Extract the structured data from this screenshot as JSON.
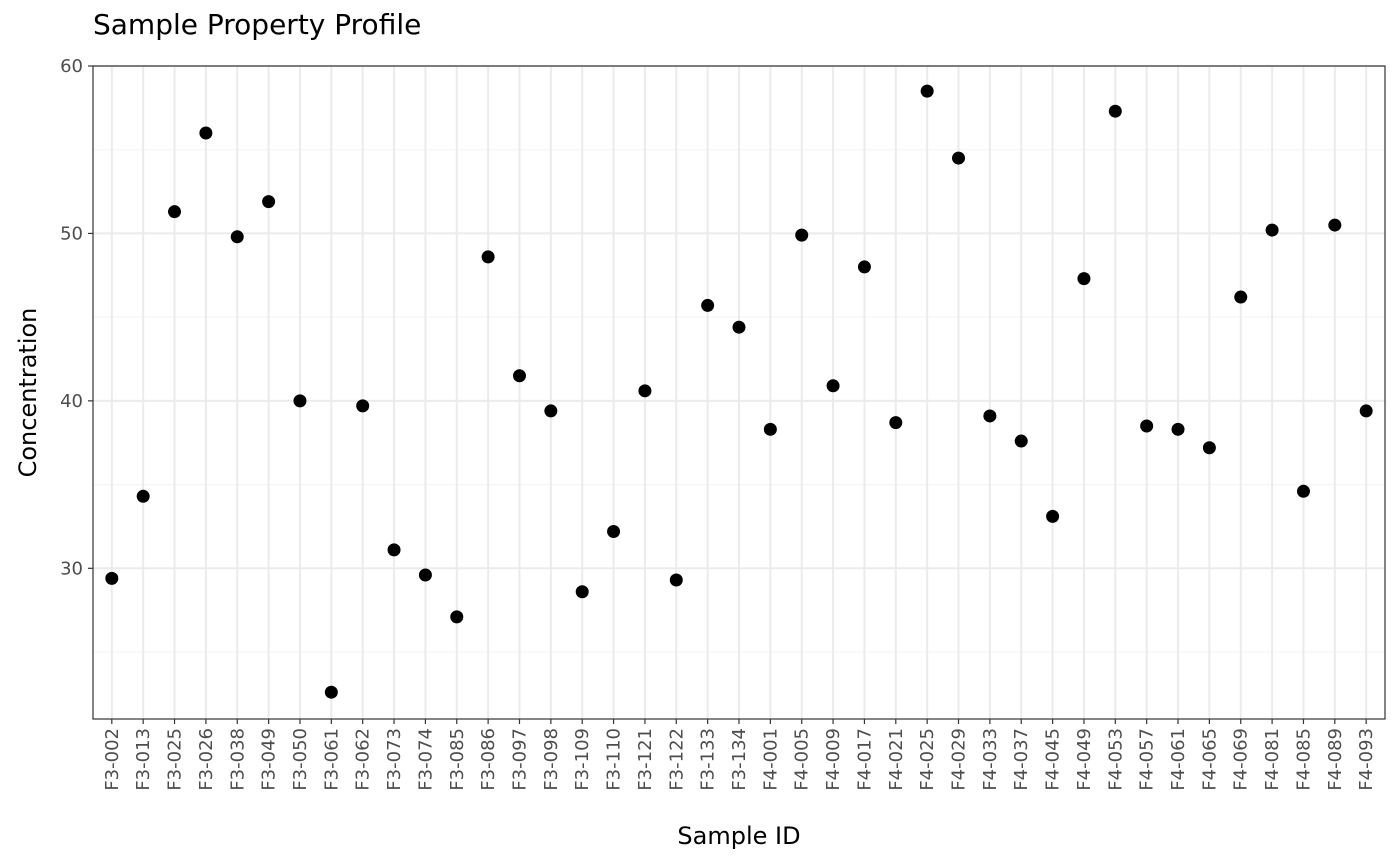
{
  "chart_data": {
    "type": "scatter",
    "title": "Sample Property Profile",
    "xlabel": "Sample ID",
    "ylabel": "Concentration",
    "categories": [
      "F3-002",
      "F3-013",
      "F3-025",
      "F3-026",
      "F3-038",
      "F3-049",
      "F3-050",
      "F3-061",
      "F3-062",
      "F3-073",
      "F3-074",
      "F3-085",
      "F3-086",
      "F3-097",
      "F3-098",
      "F3-109",
      "F3-110",
      "F3-121",
      "F3-122",
      "F3-133",
      "F3-134",
      "F4-001",
      "F4-005",
      "F4-009",
      "F4-017",
      "F4-021",
      "F4-025",
      "F4-029",
      "F4-033",
      "F4-037",
      "F4-045",
      "F4-049",
      "F4-053",
      "F4-057",
      "F4-061",
      "F4-065",
      "F4-069",
      "F4-081",
      "F4-085",
      "F4-089",
      "F4-093"
    ],
    "values": [
      29.4,
      34.3,
      51.3,
      56.0,
      49.8,
      51.9,
      40.0,
      22.6,
      39.7,
      31.1,
      29.6,
      27.1,
      48.6,
      41.5,
      39.4,
      28.6,
      32.2,
      40.6,
      29.3,
      45.7,
      44.4,
      38.3,
      49.9,
      40.9,
      48.0,
      38.7,
      58.5,
      54.5,
      39.1,
      37.6,
      33.1,
      47.3,
      57.3,
      38.5,
      38.3,
      37.2,
      46.2,
      50.2,
      34.6,
      50.5,
      39.4
    ],
    "ylim": [
      21.0,
      60.0
    ],
    "yticks": [
      30,
      40,
      50,
      60
    ],
    "grid": true,
    "legend": "none",
    "marker_color": "#000000",
    "grid_major_color": "#ebebeb",
    "grid_minor_color": "#f5f5f5",
    "tick_label_color": "#4d4d4d"
  }
}
